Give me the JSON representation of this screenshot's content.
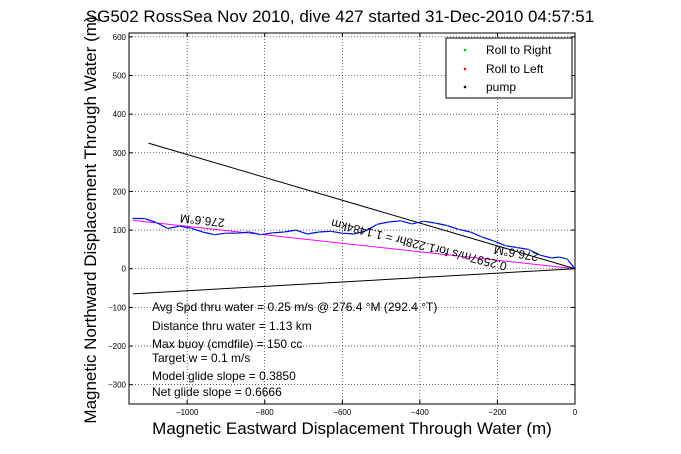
{
  "chart_data": {
    "type": "line",
    "title": "SG502 RossSea Nov 2010, dive 427 started 31-Dec-2010 04:57:51",
    "xlabel": "Magnetic Eastward Displacement Through Water (m)",
    "ylabel": "Magnetic Northward Displacement Through Water (m)",
    "xlim": [
      -1150,
      0
    ],
    "ylim": [
      -350,
      610
    ],
    "xticks": [
      -1000,
      -800,
      -600,
      -400,
      -200,
      0
    ],
    "yticks": [
      -300,
      -200,
      -100,
      0,
      100,
      200,
      300,
      400,
      500,
      600
    ],
    "grid": true,
    "legend": {
      "placement": "top-right",
      "entries": [
        {
          "label": "Roll to Right",
          "color": "#00cc00",
          "marker": "dot"
        },
        {
          "label": "Roll to Left",
          "color": "#ff0000",
          "marker": "dot"
        },
        {
          "label": "pump",
          "color": "#000000",
          "marker": "dot"
        }
      ]
    },
    "series": [
      {
        "color": "#0000ff",
        "x": [
          0,
          -20,
          -40,
          -60,
          -90,
          -120,
          -150,
          -180,
          -210,
          -240,
          -270,
          -300,
          -330,
          -360,
          -390,
          -420,
          -450,
          -480,
          -510,
          -540,
          -570,
          -600,
          -630,
          -660,
          -690,
          -720,
          -750,
          -780,
          -810,
          -840,
          -870,
          -900,
          -930,
          -960,
          -990,
          -1020,
          -1050,
          -1080,
          -1110,
          -1140
        ],
        "y": [
          0,
          25,
          30,
          28,
          35,
          50,
          55,
          60,
          72,
          82,
          95,
          102,
          112,
          118,
          123,
          116,
          124,
          121,
          115,
          98,
          90,
          92,
          97,
          95,
          90,
          100,
          95,
          93,
          88,
          95,
          92,
          92,
          88,
          95,
          105,
          110,
          104,
          120,
          130,
          130
        ]
      }
    ],
    "lines": [
      {
        "color": "#ff00ff",
        "x": [
          0,
          -1140
        ],
        "y": [
          0,
          125
        ]
      },
      {
        "color": "#000000",
        "x": [
          0,
          -1100
        ],
        "y": [
          0,
          325
        ]
      },
      {
        "color": "#000000",
        "x": [
          0,
          -1140
        ],
        "y": [
          0,
          -65
        ]
      }
    ],
    "annotations": [
      {
        "text": "276.6°M",
        "x": -960,
        "y": 135,
        "rotation": 186
      },
      {
        "text": "276.6°M",
        "x": -150,
        "y": 50,
        "rotation": 190
      },
      {
        "text": "0.2597m/s for1.228hr = 1.1484km",
        "x": -400,
        "y": 72,
        "rotation": 194
      }
    ],
    "info_lines": [
      "Avg Spd thru water =  0.25 m/s @ 276.4   °M (292.4 °T)",
      "Distance thru water =  1.13 km",
      "Max buoy (cmdfile) = 150 cc",
      "Target w = 0.1 m/s",
      "Model glide slope = 0.3850",
      "Net glide slope = 0.6666"
    ]
  }
}
